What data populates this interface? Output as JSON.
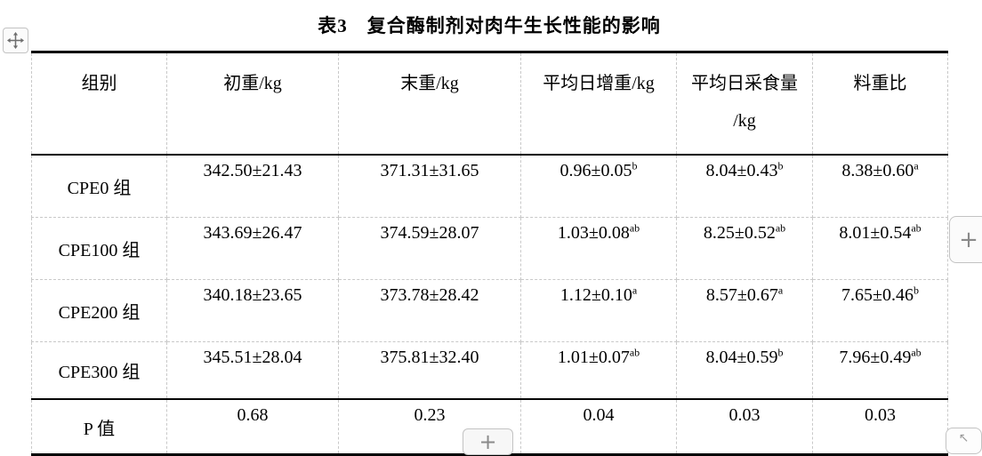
{
  "caption": "表3　复合酶制剂对肉牛生长性能的影响",
  "table": {
    "columns": [
      {
        "label": "组别",
        "line2": ""
      },
      {
        "label": "初重/kg",
        "line2": ""
      },
      {
        "label": "末重/kg",
        "line2": ""
      },
      {
        "label": "平均日增重/kg",
        "line2": ""
      },
      {
        "label": "平均日采食量",
        "line2": "/kg"
      },
      {
        "label": "料重比",
        "line2": ""
      }
    ],
    "rows": [
      {
        "group": "CPE0 组",
        "cells": [
          {
            "v": "342.50±21.43",
            "sup": ""
          },
          {
            "v": "371.31±31.65",
            "sup": ""
          },
          {
            "v": "0.96±0.05",
            "sup": "b"
          },
          {
            "v": "8.04±0.43",
            "sup": "b"
          },
          {
            "v": "8.38±0.60",
            "sup": "a"
          }
        ]
      },
      {
        "group": "CPE100 组",
        "cells": [
          {
            "v": "343.69±26.47",
            "sup": ""
          },
          {
            "v": "374.59±28.07",
            "sup": ""
          },
          {
            "v": "1.03±0.08",
            "sup": "ab"
          },
          {
            "v": "8.25±0.52",
            "sup": "ab"
          },
          {
            "v": "8.01±0.54",
            "sup": "ab"
          }
        ]
      },
      {
        "group": "CPE200 组",
        "cells": [
          {
            "v": "340.18±23.65",
            "sup": ""
          },
          {
            "v": "373.78±28.42",
            "sup": ""
          },
          {
            "v": "1.12±0.10",
            "sup": "a"
          },
          {
            "v": "8.57±0.67",
            "sup": "a"
          },
          {
            "v": "7.65±0.46",
            "sup": "b"
          }
        ]
      },
      {
        "group": "CPE300 组",
        "cells": [
          {
            "v": "345.51±28.04",
            "sup": ""
          },
          {
            "v": "375.81±32.40",
            "sup": ""
          },
          {
            "v": "1.01±0.07",
            "sup": "ab"
          },
          {
            "v": "8.04±0.59",
            "sup": "b"
          },
          {
            "v": "7.96±0.49",
            "sup": "ab"
          }
        ]
      },
      {
        "group": "P 值",
        "cells": [
          {
            "v": "0.68",
            "sup": ""
          },
          {
            "v": "0.23",
            "sup": ""
          },
          {
            "v": "0.04",
            "sup": ""
          },
          {
            "v": "0.03",
            "sup": ""
          },
          {
            "v": "0.03",
            "sup": ""
          }
        ]
      }
    ]
  },
  "controls": {
    "move_handle_icon": "move-icon",
    "insert_column_label": "+",
    "insert_row_label": "+",
    "corner_arrow_glyph": "↖"
  },
  "colors": {
    "text": "#000000",
    "solid_border": "#000000",
    "gridline": "#c9c9c9",
    "control_border": "#c3c3c3",
    "control_glyph": "#8a8a8a",
    "background": "#ffffff"
  }
}
